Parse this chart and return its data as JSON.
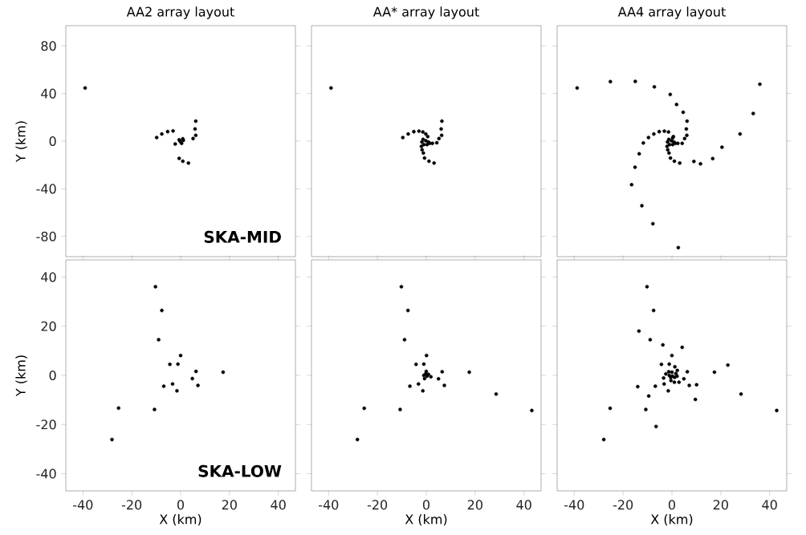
{
  "chart_data": [
    {
      "type": "scatter",
      "title": "AA2 array layout",
      "ylabel": "Y (km)",
      "color": "#000000",
      "marker": "circle",
      "xlim": [
        -47,
        47
      ],
      "ylim": [
        -97,
        97
      ],
      "xticks": [
        -40,
        -20,
        0,
        20,
        40
      ],
      "yticks": [
        -80,
        -40,
        0,
        40,
        80
      ],
      "tick_labels": "y",
      "annotations": [
        "SKA-MID"
      ],
      "x": [
        -39.1,
        -9.8,
        -7.7,
        -5.3,
        -3.1,
        -2.2,
        -0.6,
        0.9,
        3.2,
        5.1,
        6.2,
        5.9,
        6.2,
        -0.6,
        0.9,
        0.4,
        -0.2,
        1.1
      ],
      "values": [
        44.7,
        3.1,
        6.0,
        8.0,
        8.6,
        -2.4,
        -14.4,
        -16.8,
        -18.4,
        2.2,
        4.9,
        10.2,
        16.8,
        1.1,
        2.0,
        -1.8,
        -0.2,
        0.7
      ]
    },
    {
      "type": "scatter",
      "title": "AA* array layout",
      "color": "#000000",
      "marker": "circle",
      "xlim": [
        -47,
        47
      ],
      "ylim": [
        -97,
        97
      ],
      "xticks": [
        -40,
        -20,
        0,
        20,
        40
      ],
      "yticks": [
        -80,
        -40,
        0,
        40,
        80
      ],
      "tick_labels": false,
      "x": [
        -39.0,
        -9.6,
        -7.4,
        -5.1,
        -3.0,
        -1.4,
        -0.2,
        6.4,
        6.1,
        6.3,
        5.2,
        4.3,
        -2.0,
        -1.7,
        -1.2,
        -0.7,
        1.1,
        3.2,
        -1.8,
        -1.3,
        -0.2,
        0.9,
        1.4,
        2.5,
        -1.0,
        0.3,
        0.6
      ],
      "values": [
        44.7,
        3.1,
        6.0,
        8.0,
        8.4,
        7.7,
        6.0,
        16.8,
        10.2,
        4.9,
        2.2,
        -1.3,
        -4.4,
        -7.3,
        -10.0,
        -14.2,
        -16.8,
        -18.4,
        -0.7,
        1.5,
        0.4,
        -0.7,
        -1.8,
        -1.8,
        -2.9,
        -2.9,
        3.8
      ]
    },
    {
      "type": "scatter",
      "title": "AA4 array layout",
      "color": "#000000",
      "marker": "circle",
      "xlim": [
        -47,
        47
      ],
      "ylim": [
        -97,
        97
      ],
      "xticks": [
        -40,
        -20,
        0,
        20,
        40
      ],
      "yticks": [
        -80,
        -40,
        0,
        40,
        80
      ],
      "tick_labels": false,
      "x": [
        -38.8,
        -25.2,
        -15.0,
        -7.2,
        -0.7,
        1.9,
        4.6,
        6.2,
        5.9,
        6.1,
        5.2,
        36.0,
        33.3,
        27.9,
        20.5,
        16.7,
        11.7,
        9.0,
        3.2,
        1.0,
        -0.6,
        -1.2,
        -1.7,
        -2.0,
        -11.7,
        -13.4,
        -15.1,
        -16.5,
        -12.3,
        -7.8,
        2.6,
        -9.6,
        -7.4,
        -5.2,
        -3.1,
        -1.4,
        -1.8,
        -1.3,
        -0.2,
        0.3,
        0.8,
        1.4,
        2.4,
        -1.0,
        0.3,
        0.6,
        4.2
      ],
      "values": [
        44.7,
        50.0,
        50.2,
        45.6,
        39.2,
        30.8,
        24.3,
        16.8,
        10.2,
        4.9,
        2.2,
        47.8,
        23.2,
        6.0,
        -5.1,
        -14.6,
        -19.0,
        -17.0,
        -18.4,
        -16.8,
        -14.2,
        -10.0,
        -7.3,
        -4.4,
        -1.5,
        -10.6,
        -21.9,
        -36.5,
        -54.2,
        -69.3,
        -89.4,
        3.1,
        6.0,
        8.0,
        8.4,
        7.7,
        -0.7,
        1.5,
        0.4,
        2.7,
        -0.7,
        -1.8,
        -1.8,
        -2.9,
        -2.9,
        3.8,
        -1.8
      ]
    },
    {
      "type": "scatter",
      "xlabel": "X (km)",
      "ylabel": "Y (km)",
      "color": "#000000",
      "marker": "circle",
      "xlim": [
        -47,
        47
      ],
      "ylim": [
        -47,
        47
      ],
      "xticks": [
        -40,
        -20,
        0,
        20,
        40
      ],
      "yticks": [
        -40,
        -20,
        0,
        20,
        40
      ],
      "annotations": [
        "SKA-LOW"
      ],
      "x": [
        -10.3,
        -7.7,
        -9.0,
        0.0,
        -4.4,
        -1.1,
        6.3,
        17.4,
        4.8,
        7.1,
        -3.3,
        -6.9,
        -1.5,
        -10.7,
        -25.4,
        -28.1
      ],
      "values": [
        36.1,
        26.4,
        14.5,
        8.1,
        4.5,
        4.6,
        1.6,
        1.3,
        -1.3,
        -4.1,
        -3.5,
        -4.4,
        -6.3,
        -13.9,
        -13.3,
        -26.1
      ]
    },
    {
      "type": "scatter",
      "xlabel": "X (km)",
      "color": "#000000",
      "marker": "circle",
      "xlim": [
        -47,
        47
      ],
      "ylim": [
        -47,
        47
      ],
      "xticks": [
        -40,
        -20,
        0,
        20,
        40
      ],
      "yticks": [
        -40,
        -20,
        0,
        20,
        40
      ],
      "tick_labels": "x",
      "x": [
        -10.2,
        -7.5,
        -8.9,
        0.1,
        -4.2,
        -1.0,
        6.5,
        17.6,
        5.0,
        7.4,
        -3.2,
        -6.7,
        -1.4,
        -10.7,
        -25.4,
        -28.2,
        28.6,
        43.2,
        0.0,
        -1.0,
        0.9,
        -0.7,
        1.9,
        0.3,
        -0.2
      ],
      "values": [
        36.1,
        26.4,
        14.5,
        8.1,
        4.5,
        4.6,
        1.5,
        1.3,
        -1.4,
        -4.1,
        -3.5,
        -4.4,
        -6.3,
        -13.9,
        -13.4,
        -26.1,
        -7.6,
        -14.3,
        1.6,
        0.0,
        0.4,
        -1.3,
        -0.6,
        -0.3,
        0.7
      ]
    },
    {
      "type": "scatter",
      "xlabel": "X (km)",
      "color": "#000000",
      "marker": "circle",
      "xlim": [
        -47,
        47
      ],
      "ylim": [
        -47,
        47
      ],
      "xticks": [
        -40,
        -20,
        0,
        20,
        40
      ],
      "yticks": [
        -40,
        -20,
        0,
        20,
        40
      ],
      "tick_labels": "x",
      "x": [
        -10.2,
        -7.5,
        -13.5,
        -8.9,
        -3.7,
        4.2,
        0.0,
        -4.3,
        -1.1,
        1.2,
        2.2,
        6.3,
        17.4,
        22.9,
        -2.5,
        -3.4,
        4.9,
        2.9,
        1.0,
        -0.4,
        -3.2,
        -6.8,
        -14.0,
        7.1,
        10.1,
        -1.5,
        -9.5,
        9.6,
        28.3,
        42.9,
        -10.7,
        -25.3,
        -6.5,
        -27.9,
        -1.3,
        0.0,
        1.6,
        -1.1,
        1.1,
        -0.5,
        2.1,
        0.2
      ],
      "values": [
        36.1,
        26.4,
        18.0,
        14.5,
        12.4,
        11.4,
        8.1,
        4.5,
        4.6,
        3.5,
        2.0,
        1.5,
        1.3,
        4.2,
        0.6,
        -1.1,
        -1.4,
        -2.8,
        -2.8,
        -2.1,
        -3.5,
        -4.4,
        -4.6,
        -4.1,
        -3.8,
        -6.3,
        -8.4,
        -9.8,
        -7.6,
        -14.3,
        -13.9,
        -13.4,
        -20.8,
        -26.1,
        1.5,
        1.3,
        0.7,
        0.0,
        -0.8,
        -0.8,
        -0.3,
        -0.3
      ]
    }
  ]
}
